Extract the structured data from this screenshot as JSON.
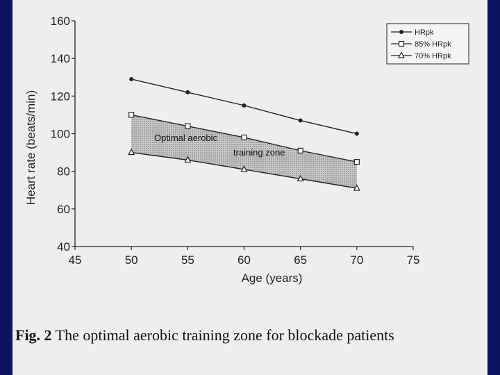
{
  "chart_data": {
    "type": "line",
    "xlabel": "Age (years)",
    "ylabel": "Heart rate (beats/min)",
    "xlim": [
      45,
      75
    ],
    "ylim": [
      40,
      160
    ],
    "xticks": [
      "45",
      "50",
      "55",
      "60",
      "65",
      "70",
      "75"
    ],
    "yticks": [
      "40",
      "60",
      "80",
      "100",
      "120",
      "140",
      "160"
    ],
    "x": [
      50,
      55,
      60,
      65,
      70
    ],
    "series": [
      {
        "name": "HRpk",
        "values": [
          129,
          122,
          115,
          107,
          100
        ],
        "marker": "dot"
      },
      {
        "name": "85% HRpk",
        "values": [
          110,
          104,
          98,
          91,
          85
        ],
        "marker": "square"
      },
      {
        "name": "70% HRpk",
        "values": [
          90,
          86,
          81,
          76,
          71
        ],
        "marker": "triangle"
      }
    ],
    "zone_label_1": "Optimal aerobic",
    "zone_label_2": "training zone",
    "legend_position": "top-right",
    "grid": false
  },
  "caption": {
    "fig_label": "Fig. 2",
    "text": " The optimal aerobic training zone for blockade patients"
  }
}
